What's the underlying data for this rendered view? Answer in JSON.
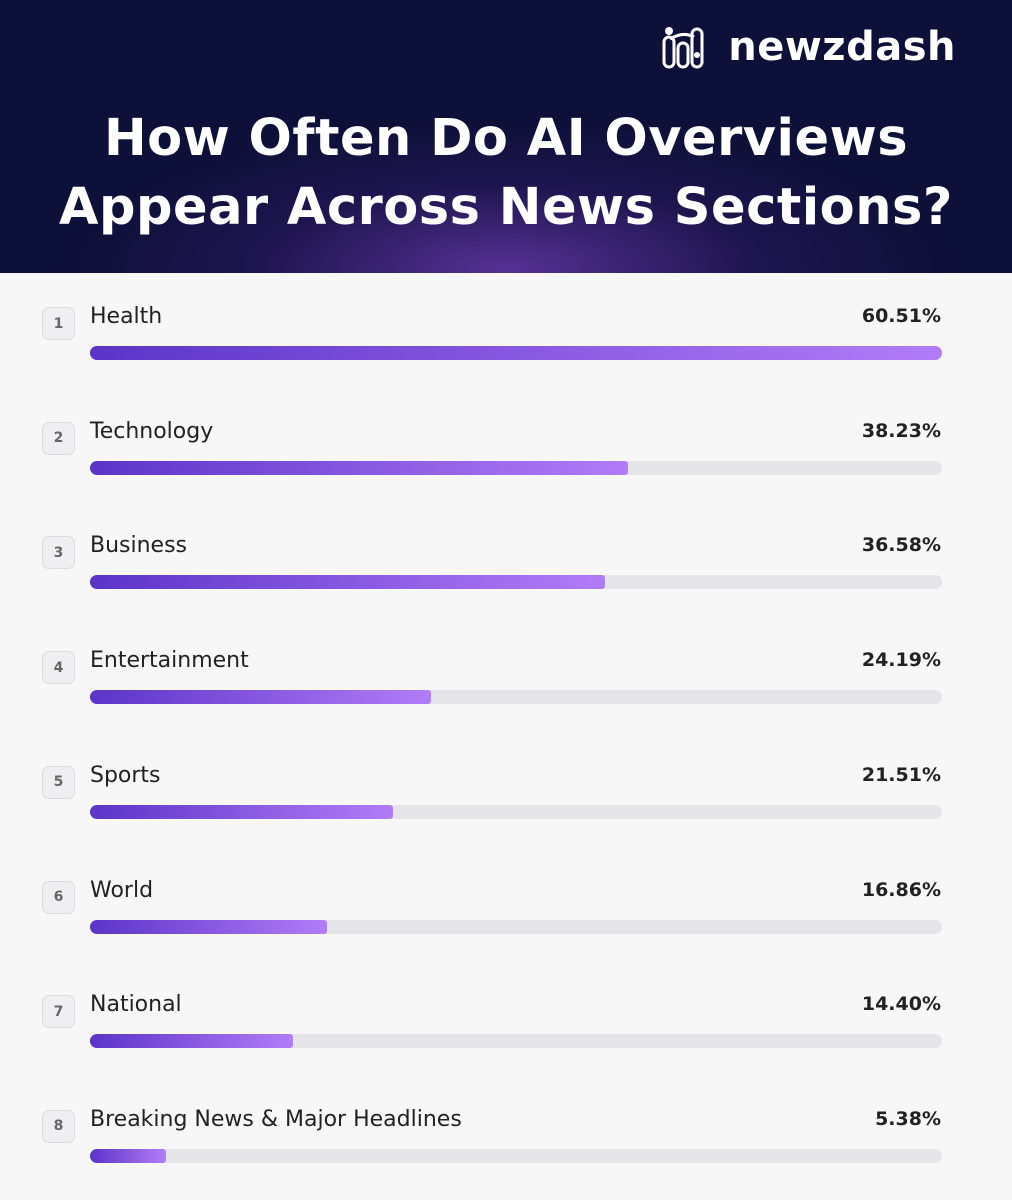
{
  "brand": {
    "name": "newzdash",
    "logo_icon": "newzdash-logo-icon"
  },
  "chart_data": {
    "type": "bar",
    "title": "How Often Do AI Overviews\nAppear Across News Sections?",
    "orientation": "horizontal",
    "xlim": [
      0,
      60.51
    ],
    "colors": {
      "bar_start": "#5b34c8",
      "bar_end": "#b27cf8",
      "track": "#e4e4e9"
    },
    "items": [
      {
        "rank": "1",
        "category": "Health",
        "value": 60.51,
        "label": "60.51%"
      },
      {
        "rank": "2",
        "category": "Technology",
        "value": 38.23,
        "label": "38.23%"
      },
      {
        "rank": "3",
        "category": "Business",
        "value": 36.58,
        "label": "36.58%"
      },
      {
        "rank": "4",
        "category": "Entertainment",
        "value": 24.19,
        "label": "24.19%"
      },
      {
        "rank": "5",
        "category": "Sports",
        "value": 21.51,
        "label": "21.51%"
      },
      {
        "rank": "6",
        "category": "World",
        "value": 16.86,
        "label": "16.86%"
      },
      {
        "rank": "7",
        "category": "National",
        "value": 14.4,
        "label": "14.40%"
      },
      {
        "rank": "8",
        "category": "Breaking News & Major Headlines",
        "value": 5.38,
        "label": "5.38%"
      }
    ]
  }
}
